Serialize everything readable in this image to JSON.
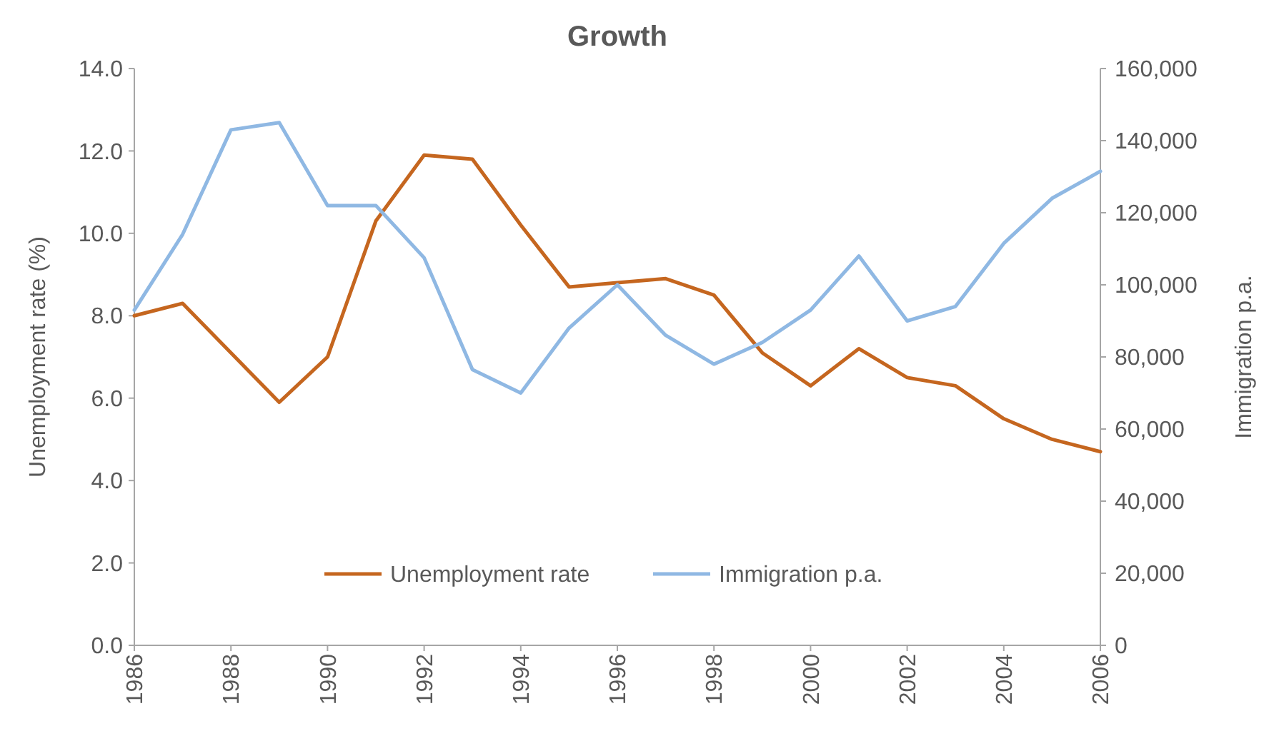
{
  "chart_data": {
    "type": "line",
    "title": "Growth",
    "ylabel": "Unemployment rate (%)",
    "y2label": "Immigration p.a.",
    "x": [
      1986,
      1987,
      1988,
      1989,
      1990,
      1991,
      1992,
      1993,
      1994,
      1995,
      1996,
      1997,
      1998,
      1999,
      2000,
      2001,
      2002,
      2003,
      2004,
      2005,
      2006
    ],
    "xlim": [
      1986,
      2006
    ],
    "xticks": [
      1986,
      1988,
      1990,
      1992,
      1994,
      1996,
      1998,
      2000,
      2002,
      2004,
      2006
    ],
    "ylim": [
      0,
      14
    ],
    "yticks": [
      {
        "value": 0,
        "label": "0.0"
      },
      {
        "value": 2,
        "label": "2.0"
      },
      {
        "value": 4,
        "label": "4.0"
      },
      {
        "value": 6,
        "label": "6.0"
      },
      {
        "value": 8,
        "label": "8.0"
      },
      {
        "value": 10,
        "label": "10.0"
      },
      {
        "value": 12,
        "label": "12.0"
      },
      {
        "value": 14,
        "label": "14.0"
      }
    ],
    "y2lim": [
      0,
      160000
    ],
    "y2ticks": [
      0,
      {
        "value": 20000,
        "label": "20,000"
      },
      {
        "value": 40000,
        "label": "40,000"
      },
      {
        "value": 60000,
        "label": "60,000"
      },
      {
        "value": 80000,
        "label": "80,000"
      },
      {
        "value": 100000,
        "label": "100,000"
      },
      {
        "value": 120000,
        "label": "120,000"
      },
      {
        "value": 140000,
        "label": "140,000"
      },
      {
        "value": 160000,
        "label": "160,000"
      }
    ],
    "series": [
      {
        "name": "Unemployment rate",
        "color": "#c5661f",
        "values": [
          8.0,
          8.3,
          7.1,
          5.9,
          7.0,
          10.3,
          11.9,
          11.8,
          10.2,
          8.7,
          8.8,
          8.9,
          8.5,
          7.1,
          6.3,
          7.2,
          6.5,
          6.3,
          5.5,
          5.0,
          4.7
        ]
      },
      {
        "name": "Immigration p.a.",
        "color": "#8fb8e3",
        "axis": "y2",
        "values": [
          93000,
          114000,
          143000,
          145000,
          122000,
          122000,
          107500,
          76500,
          70000,
          88000,
          100000,
          86000,
          78000,
          84000,
          93000,
          108000,
          90000,
          94000,
          111500,
          124000,
          131500
        ]
      }
    ],
    "legend": "bottom",
    "grid": false,
    "line_style": "solid",
    "marker": "none"
  }
}
